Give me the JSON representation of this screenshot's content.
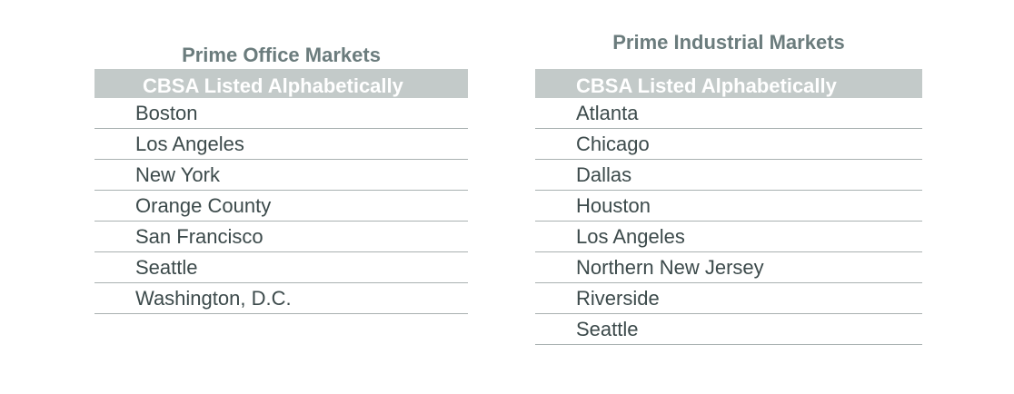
{
  "tables": [
    {
      "title": "Prime Office Markets",
      "header": "CBSA Listed Alphabetically",
      "rows": [
        "Boston",
        "Los Angeles",
        "New York",
        "Orange County",
        "San Francisco",
        "Seattle",
        "Washington, D.C."
      ]
    },
    {
      "title": "Prime Industrial Markets",
      "header": "CBSA Listed Alphabetically",
      "rows": [
        "Atlanta",
        "Chicago",
        "Dallas",
        "Houston",
        "Los Angeles",
        "Northern New Jersey",
        "Riverside",
        "Seattle"
      ]
    }
  ]
}
